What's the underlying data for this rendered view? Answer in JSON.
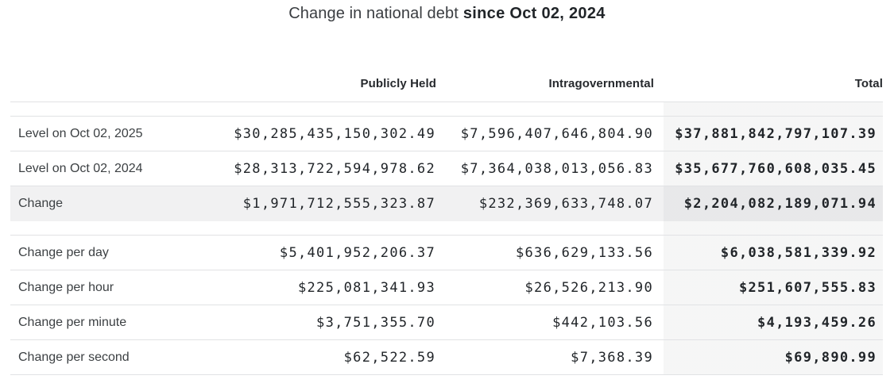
{
  "title": {
    "prefix": "Change in national debt",
    "emphasis": "since Oct 02, 2024"
  },
  "table": {
    "headers": [
      "Publicly Held",
      "Intragovernmental",
      "Total"
    ],
    "groups": [
      {
        "rows": [
          {
            "label": "Level on Oct 02, 2025",
            "publicly_held": "$30,285,435,150,302.49",
            "intragovernmental": "$7,596,407,646,804.90",
            "total": "$37,881,842,797,107.39",
            "highlight": false
          },
          {
            "label": "Level on Oct 02, 2024",
            "publicly_held": "$28,313,722,594,978.62",
            "intragovernmental": "$7,364,038,013,056.83",
            "total": "$35,677,760,608,035.45",
            "highlight": false
          },
          {
            "label": "Change",
            "publicly_held": "$1,971,712,555,323.87",
            "intragovernmental": "$232,369,633,748.07",
            "total": "$2,204,082,189,071.94",
            "highlight": true
          }
        ]
      },
      {
        "rows": [
          {
            "label": "Change per day",
            "publicly_held": "$5,401,952,206.37",
            "intragovernmental": "$636,629,133.56",
            "total": "$6,038,581,339.92",
            "highlight": false
          },
          {
            "label": "Change per hour",
            "publicly_held": "$225,081,341.93",
            "intragovernmental": "$26,526,213.90",
            "total": "$251,607,555.83",
            "highlight": false
          },
          {
            "label": "Change per minute",
            "publicly_held": "$3,751,355.70",
            "intragovernmental": "$442,103.56",
            "total": "$4,193,459.26",
            "highlight": false
          },
          {
            "label": "Change per second",
            "publicly_held": "$62,522.59",
            "intragovernmental": "$7,368.39",
            "total": "$69,890.99",
            "highlight": false
          }
        ]
      }
    ]
  },
  "chart_data": {
    "type": "table",
    "title": "Change in national debt since Oct 02, 2024",
    "columns": [
      "",
      "Publicly Held",
      "Intragovernmental",
      "Total"
    ],
    "rows": [
      [
        "Level on Oct 02, 2025",
        "$30,285,435,150,302.49",
        "$7,596,407,646,804.90",
        "$37,881,842,797,107.39"
      ],
      [
        "Level on Oct 02, 2024",
        "$28,313,722,594,978.62",
        "$7,364,038,013,056.83",
        "$35,677,760,608,035.45"
      ],
      [
        "Change",
        "$1,971,712,555,323.87",
        "$232,369,633,748.07",
        "$2,204,082,189,071.94"
      ],
      [
        "Change per day",
        "$5,401,952,206.37",
        "$636,629,133.56",
        "$6,038,581,339.92"
      ],
      [
        "Change per hour",
        "$225,081,341.93",
        "$26,526,213.90",
        "$251,607,555.83"
      ],
      [
        "Change per minute",
        "$3,751,355.70",
        "$442,103.56",
        "$4,193,459.26"
      ],
      [
        "Change per second",
        "$62,522.59",
        "$7,368.39",
        "$69,890.99"
      ]
    ]
  }
}
